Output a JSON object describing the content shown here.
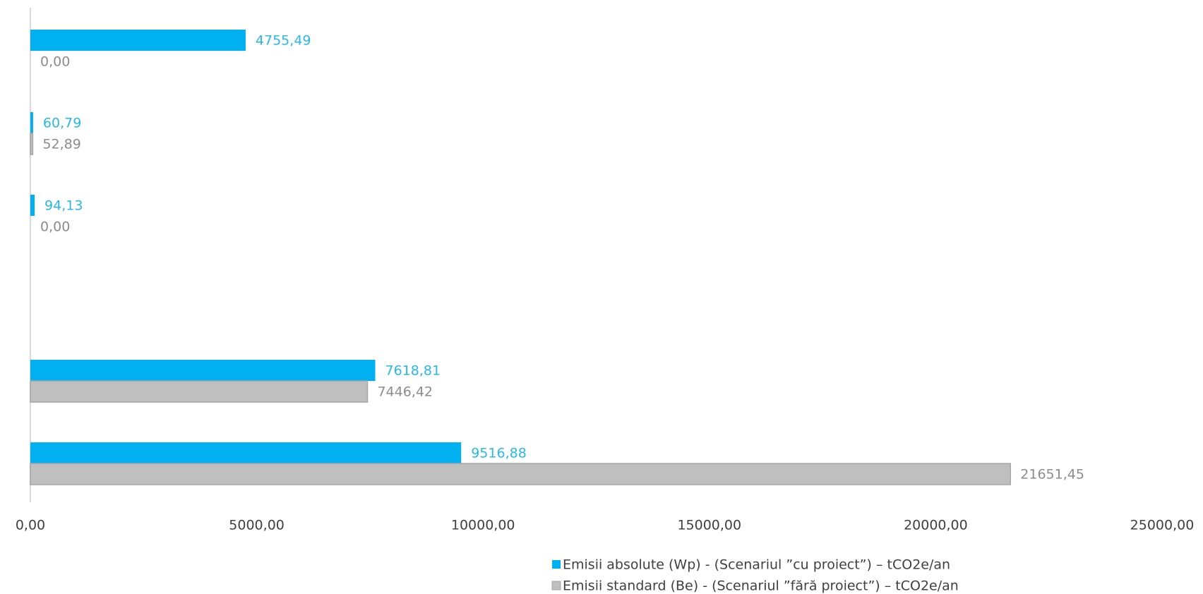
{
  "chart_data": {
    "type": "hbar",
    "categories": [
      null,
      null,
      null,
      null,
      null,
      null
    ],
    "series": [
      {
        "name": "Emisii absolute (Wp) -  (Scenariul ”cu proiect”) – tCO2e/an",
        "color": "#00b0f0",
        "values": [
          4755.49,
          60.79,
          94.13,
          null,
          7618.81,
          9516.88
        ],
        "value_labels": [
          "4755,49",
          "60,79",
          "94,13",
          null,
          "7618,81",
          "9516,88"
        ]
      },
      {
        "name": "Emisii standard (Be) -  (Scenariul ”fără proiect”) – tCO2e/an",
        "color": "#bfbfbf",
        "values": [
          0,
          52.89,
          0,
          null,
          7446.42,
          21651.45
        ],
        "value_labels": [
          "0,00",
          "52,89",
          "0,00",
          null,
          "7446,42",
          "21651,45"
        ]
      }
    ],
    "xlim": [
      0,
      25000
    ],
    "xticks": [
      {
        "value": 0,
        "label": "0,00"
      },
      {
        "value": 5000,
        "label": "5000,00"
      },
      {
        "value": 10000,
        "label": "10000,00"
      },
      {
        "value": 15000,
        "label": "15000,00"
      },
      {
        "value": 20000,
        "label": "20000,00"
      },
      {
        "value": 25000,
        "label": "25000,00"
      }
    ],
    "legend": "bottom-right"
  }
}
